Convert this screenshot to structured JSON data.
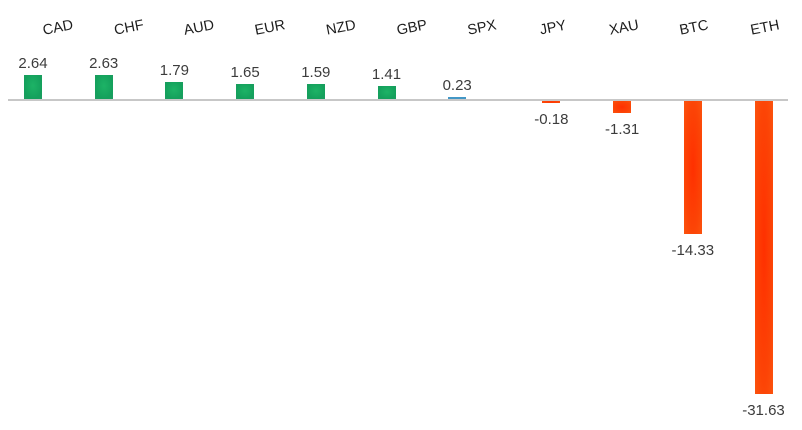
{
  "chart_data": {
    "type": "bar",
    "title": "",
    "xlabel": "",
    "ylabel": "",
    "categories": [
      "CAD",
      "CHF",
      "AUD",
      "EUR",
      "NZD",
      "GBP",
      "SPX",
      "JPY",
      "XAU",
      "BTC",
      "ETH"
    ],
    "values": [
      2.64,
      2.63,
      1.79,
      1.65,
      1.59,
      1.41,
      0.23,
      -0.18,
      -1.31,
      -14.33,
      -31.63
    ],
    "value_labels": [
      "2.64",
      "2.63",
      "1.79",
      "1.65",
      "1.59",
      "1.41",
      "0.23",
      "-0.18",
      "-1.31",
      "-14.33",
      "-31.63"
    ],
    "point_colors": [
      "#15a35e",
      "#15a35e",
      "#15a35e",
      "#15a35e",
      "#15a35e",
      "#15a35e",
      "#4397c6",
      "#fc4406",
      "#fc4406",
      "#fc4406",
      "#fc4406"
    ],
    "positive_fx_color": "#15a35e",
    "spx_color": "#4397c6",
    "negative_color": "#fc4406",
    "axis_line_color": "#c7c7c7",
    "value_label_color": "#3c3c3c",
    "category_label_color": "#1c1c1c",
    "category_label_rotation_deg": -11,
    "ylim": [
      -32,
      3
    ],
    "baseline": 0,
    "grid": false,
    "legend": false
  }
}
